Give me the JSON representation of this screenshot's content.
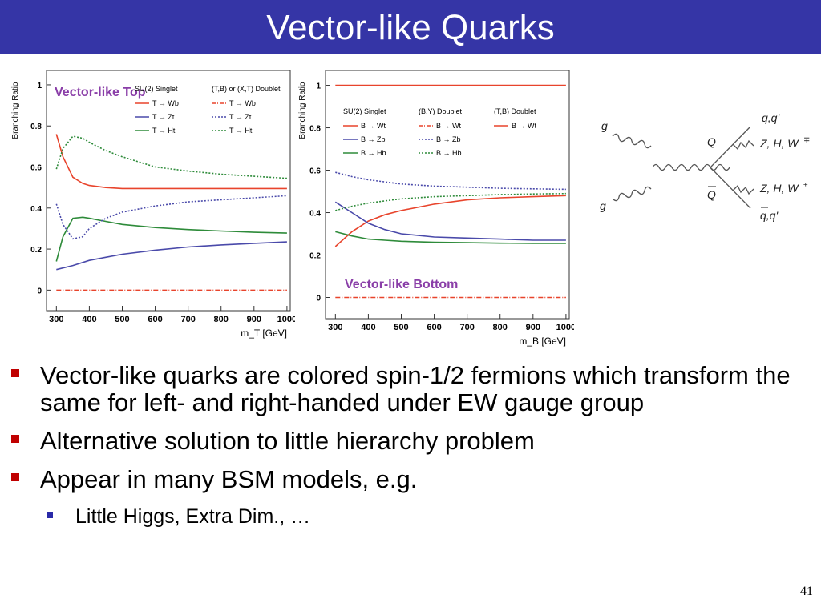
{
  "slide": {
    "title": "Vector-like Quarks",
    "page_number": "41",
    "bullets": [
      "Vector-like quarks are colored spin-1/2 fermions which transform the same for left- and right-handed under EW gauge group",
      "Alternative solution to little hierarchy problem",
      "Appear in many BSM models, e.g."
    ],
    "sub_bullets": [
      "Little Higgs, Extra Dim., …"
    ]
  },
  "feynman": {
    "labels": [
      "g",
      "g",
      "Q",
      "Q",
      "q,q'",
      "Z, H, W",
      "Z, H, W",
      "q,q'"
    ]
  },
  "colors": {
    "red": "#e8442c",
    "blue": "#4a4aaa",
    "green": "#2e8b3a",
    "purple": "#8a3ea8"
  },
  "chart_data": [
    {
      "type": "line",
      "title": "Vector-like Top",
      "xlabel": "m_T [GeV]",
      "ylabel": "Branching Ratio",
      "xlim": [
        270,
        1010
      ],
      "ylim": [
        -0.1,
        1.07
      ],
      "xticks": [
        300,
        400,
        500,
        600,
        700,
        800,
        900,
        1000
      ],
      "yticks": [
        0,
        0.2,
        0.4,
        0.6,
        0.8,
        1
      ],
      "legend_headers": [
        "SU(2) Singlet",
        "(T,B) or (X,T) Doublet"
      ],
      "legend_rows": [
        {
          "solid": "T → Wb",
          "dashed": "T → Wb",
          "color": "red"
        },
        {
          "solid": "T → Zt",
          "dashed": "T → Zt",
          "color": "blue"
        },
        {
          "solid": "T → Ht",
          "dashed": "T → Ht",
          "color": "green"
        }
      ],
      "series": [
        {
          "name": "T → Wb",
          "style": "solid",
          "color": "red",
          "x": [
            300,
            320,
            350,
            380,
            400,
            450,
            500,
            600,
            700,
            800,
            900,
            1000
          ],
          "y": [
            0.76,
            0.65,
            0.55,
            0.52,
            0.51,
            0.5,
            0.495,
            0.495,
            0.495,
            0.495,
            0.495,
            0.495
          ]
        },
        {
          "name": "T → Zt",
          "style": "solid",
          "color": "blue",
          "x": [
            300,
            350,
            400,
            450,
            500,
            600,
            700,
            800,
            900,
            1000
          ],
          "y": [
            0.1,
            0.12,
            0.145,
            0.16,
            0.175,
            0.195,
            0.21,
            0.22,
            0.228,
            0.235
          ]
        },
        {
          "name": "T → Ht",
          "style": "solid",
          "color": "green",
          "x": [
            300,
            320,
            350,
            380,
            400,
            450,
            500,
            600,
            700,
            800,
            900,
            1000
          ],
          "y": [
            0.14,
            0.26,
            0.35,
            0.355,
            0.35,
            0.335,
            0.32,
            0.305,
            0.295,
            0.288,
            0.282,
            0.278
          ]
        },
        {
          "name": "T → Wb",
          "style": "dashed",
          "color": "red",
          "x": [
            300,
            1000
          ],
          "y": [
            0,
            0
          ]
        },
        {
          "name": "T → Zt",
          "style": "dashed",
          "color": "blue",
          "x": [
            300,
            320,
            350,
            380,
            400,
            450,
            500,
            600,
            700,
            800,
            900,
            1000
          ],
          "y": [
            0.42,
            0.32,
            0.25,
            0.26,
            0.3,
            0.35,
            0.38,
            0.41,
            0.43,
            0.44,
            0.45,
            0.46
          ]
        },
        {
          "name": "T → Ht",
          "style": "dashed",
          "color": "green",
          "x": [
            300,
            320,
            350,
            380,
            400,
            450,
            500,
            600,
            700,
            800,
            900,
            1000
          ],
          "y": [
            0.59,
            0.69,
            0.75,
            0.74,
            0.72,
            0.68,
            0.65,
            0.6,
            0.58,
            0.565,
            0.555,
            0.545
          ]
        }
      ]
    },
    {
      "type": "line",
      "title": "Vector-like Bottom",
      "xlabel": "m_B [GeV]",
      "ylabel": "Branching Ratio",
      "xlim": [
        270,
        1010
      ],
      "ylim": [
        -0.1,
        1.07
      ],
      "xticks": [
        300,
        400,
        500,
        600,
        700,
        800,
        900,
        1000
      ],
      "yticks": [
        0,
        0.2,
        0.4,
        0.6,
        0.8,
        1
      ],
      "legend_headers": [
        "SU(2) Singlet",
        "(B,Y) Doublet",
        "(T,B) Doublet"
      ],
      "legend_rows": [
        {
          "solid": "B → Wt",
          "dashed": "B → Wt",
          "third": "B → Wt",
          "color": "red"
        },
        {
          "solid": "B → Zb",
          "dashed": "B → Zb",
          "color": "blue"
        },
        {
          "solid": "B → Hb",
          "dashed": "B → Hb",
          "color": "green"
        }
      ],
      "series": [
        {
          "name": "B → Wt",
          "style": "solid",
          "color": "red",
          "x": [
            300,
            350,
            400,
            450,
            500,
            600,
            700,
            800,
            900,
            1000
          ],
          "y": [
            0.24,
            0.31,
            0.36,
            0.39,
            0.41,
            0.44,
            0.46,
            0.47,
            0.475,
            0.48
          ]
        },
        {
          "name": "B → Zb",
          "style": "solid",
          "color": "blue",
          "x": [
            300,
            350,
            400,
            450,
            500,
            600,
            700,
            800,
            900,
            1000
          ],
          "y": [
            0.45,
            0.4,
            0.35,
            0.32,
            0.3,
            0.285,
            0.28,
            0.275,
            0.27,
            0.27
          ]
        },
        {
          "name": "B → Hb",
          "style": "solid",
          "color": "green",
          "x": [
            300,
            350,
            400,
            450,
            500,
            600,
            700,
            800,
            900,
            1000
          ],
          "y": [
            0.31,
            0.29,
            0.275,
            0.27,
            0.265,
            0.26,
            0.258,
            0.256,
            0.255,
            0.255
          ]
        },
        {
          "name": "B → Wt",
          "style": "dashed",
          "color": "red",
          "x": [
            300,
            1000
          ],
          "y": [
            0,
            0
          ]
        },
        {
          "name": "B → Zb",
          "style": "dashed",
          "color": "blue",
          "x": [
            300,
            350,
            400,
            450,
            500,
            600,
            700,
            800,
            900,
            1000
          ],
          "y": [
            0.59,
            0.57,
            0.555,
            0.545,
            0.535,
            0.525,
            0.52,
            0.515,
            0.512,
            0.51
          ]
        },
        {
          "name": "B → Hb",
          "style": "dashed",
          "color": "green",
          "x": [
            300,
            350,
            400,
            450,
            500,
            600,
            700,
            800,
            900,
            1000
          ],
          "y": [
            0.41,
            0.43,
            0.445,
            0.455,
            0.465,
            0.475,
            0.48,
            0.485,
            0.488,
            0.49
          ]
        },
        {
          "name": "B → Wt",
          "style": "solid",
          "color": "red",
          "x": [
            300,
            1000
          ],
          "y": [
            1,
            1
          ]
        }
      ]
    }
  ]
}
